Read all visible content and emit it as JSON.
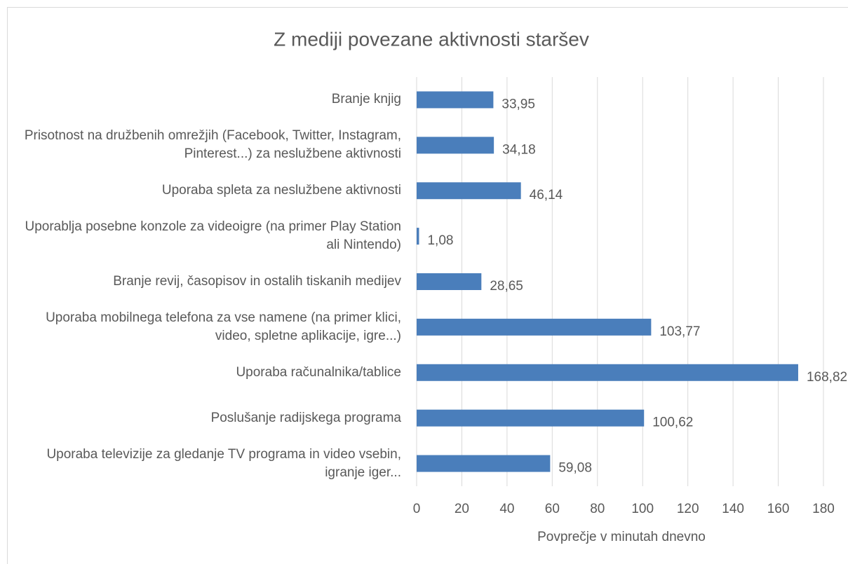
{
  "chart_data": {
    "type": "barh",
    "title": "Z mediji povezane aktivnosti staršev",
    "xlabel": "Povprečje v minutah dnevno",
    "categories": [
      "Branje knjig",
      "Prisotnost na družbenih omrežjih (Facebook, Twitter, Instagram, Pinterest...) za neslužbene aktivnosti",
      "Uporaba spleta za neslužbene aktivnosti",
      "Uporablja posebne konzole za videoigre (na primer Play Station ali Nintendo)",
      "Branje revij, časopisov in ostalih tiskanih medijev",
      "Uporaba mobilnega telefona za vse namene (na primer klici, video, spletne aplikacije, igre...)",
      "Uporaba računalnika/tablice",
      "Poslušanje radijskega programa",
      "Uporaba televizije za gledanje TV programa in video vsebin, igranje iger..."
    ],
    "values": [
      33.95,
      34.18,
      46.14,
      1.08,
      28.65,
      103.77,
      168.82,
      100.62,
      59.08
    ],
    "value_labels": [
      "33,95",
      "34,18",
      "46,14",
      "1,08",
      "28,65",
      "103,77",
      "168,82",
      "100,62",
      "59,08"
    ],
    "color": "#4a7ebb",
    "xlim": [
      0,
      180
    ],
    "xticks": [
      0,
      20,
      40,
      60,
      80,
      100,
      120,
      140,
      160,
      180
    ],
    "grid": true
  }
}
